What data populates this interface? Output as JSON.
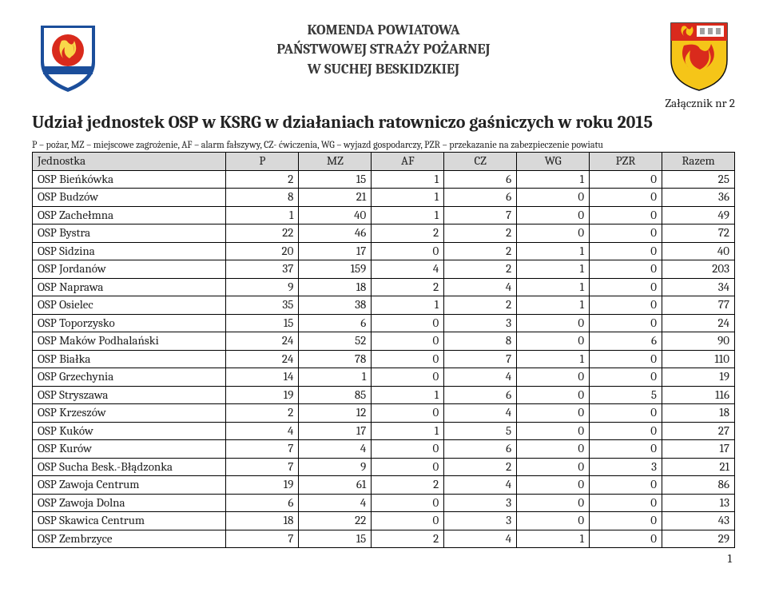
{
  "header": {
    "line1": "KOMENDA POWIATOWA",
    "line2": "PAŃSTWOWEJ STRAŻY POŻARNEJ",
    "line3": "W SUCHEJ BESKIDZKIEJ"
  },
  "attachment": "Załącznik nr 2",
  "title": "Udział jednostek OSP w KSRG w działaniach ratowniczo gaśniczych w roku 2015",
  "legend": "P – pożar, MZ – miejscowe zagrożenie, AF – alarm fałszywy, CZ- ćwiczenia, WG – wyjazd gospodarczy, PZR – przekazanie na zabezpieczenie powiatu",
  "table": {
    "header_bg": "#d9d9d9",
    "border_color": "#000000",
    "columns": [
      "Jednostka",
      "P",
      "MZ",
      "AF",
      "CZ",
      "WG",
      "PZR",
      "Razem"
    ],
    "rows": [
      [
        "OSP Bieńkówka",
        2,
        15,
        1,
        6,
        1,
        0,
        25
      ],
      [
        "OSP Budzów",
        8,
        21,
        1,
        6,
        0,
        0,
        36
      ],
      [
        "OSP Zachełmna",
        1,
        40,
        1,
        7,
        0,
        0,
        49
      ],
      [
        "OSP Bystra",
        22,
        46,
        2,
        2,
        0,
        0,
        72
      ],
      [
        "OSP Sidzina",
        20,
        17,
        0,
        2,
        1,
        0,
        40
      ],
      [
        "OSP Jordanów",
        37,
        159,
        4,
        2,
        1,
        0,
        203
      ],
      [
        "OSP Naprawa",
        9,
        18,
        2,
        4,
        1,
        0,
        34
      ],
      [
        "OSP Osielec",
        35,
        38,
        1,
        2,
        1,
        0,
        77
      ],
      [
        "OSP Toporzysko",
        15,
        6,
        0,
        3,
        0,
        0,
        24
      ],
      [
        "OSP Maków Podhalański",
        24,
        52,
        0,
        8,
        0,
        6,
        90
      ],
      [
        "OSP Białka",
        24,
        78,
        0,
        7,
        1,
        0,
        110
      ],
      [
        "OSP Grzechynia",
        14,
        1,
        0,
        4,
        0,
        0,
        19
      ],
      [
        "OSP Stryszawa",
        19,
        85,
        1,
        6,
        0,
        5,
        116
      ],
      [
        "OSP Krzeszów",
        2,
        12,
        0,
        4,
        0,
        0,
        18
      ],
      [
        "OSP Kuków",
        4,
        17,
        1,
        5,
        0,
        0,
        27
      ],
      [
        "OSP Kurów",
        7,
        4,
        0,
        6,
        0,
        0,
        17
      ],
      [
        "OSP Sucha Besk.-Błądzonka",
        7,
        9,
        0,
        2,
        0,
        3,
        21
      ],
      [
        "OSP Zawoja Centrum",
        19,
        61,
        2,
        4,
        0,
        0,
        86
      ],
      [
        "OSP Zawoja Dolna",
        6,
        4,
        0,
        3,
        0,
        0,
        13
      ],
      [
        "OSP Skawica Centrum",
        18,
        22,
        0,
        3,
        0,
        0,
        43
      ],
      [
        "OSP Zembrzyce",
        7,
        15,
        2,
        4,
        1,
        0,
        29
      ]
    ]
  },
  "page_number": "1",
  "logos": {
    "left": {
      "name": "fire-brigade-emblem"
    },
    "right": {
      "name": "coat-of-arms"
    }
  }
}
